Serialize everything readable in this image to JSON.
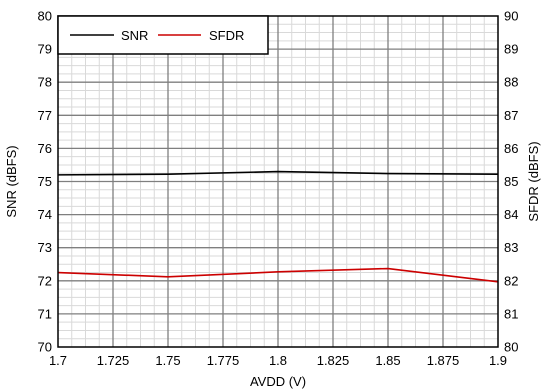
{
  "chart_data": {
    "type": "line",
    "x": [
      1.7,
      1.75,
      1.8,
      1.85,
      1.9
    ],
    "x_tick_labels": [
      "1.7",
      "1.725",
      "1.75",
      "1.775",
      "1.8",
      "1.825",
      "1.85",
      "1.875",
      "1.9"
    ],
    "xlim": [
      1.7,
      1.9
    ],
    "ylim_left": [
      70,
      80
    ],
    "ylim_right": [
      80,
      90
    ],
    "y_left_tick_labels": [
      "70",
      "71",
      "72",
      "73",
      "74",
      "75",
      "76",
      "77",
      "78",
      "79",
      "80"
    ],
    "y_right_tick_labels": [
      "80",
      "81",
      "82",
      "83",
      "84",
      "85",
      "86",
      "87",
      "88",
      "89",
      "90"
    ],
    "xlabel": "AVDD (V)",
    "ylabel_left": "SNR (dBFS)",
    "ylabel_right": "SFDR (dBFS)",
    "grid": true,
    "legend_position": "top-left",
    "series": [
      {
        "name": "SNR",
        "axis": "left",
        "color": "#000000",
        "values": [
          75.2,
          75.22,
          75.3,
          75.24,
          75.22
        ]
      },
      {
        "name": "SFDR",
        "axis": "right",
        "color": "#cc0000",
        "values": [
          82.25,
          82.12,
          82.27,
          82.37,
          81.97
        ]
      }
    ]
  }
}
